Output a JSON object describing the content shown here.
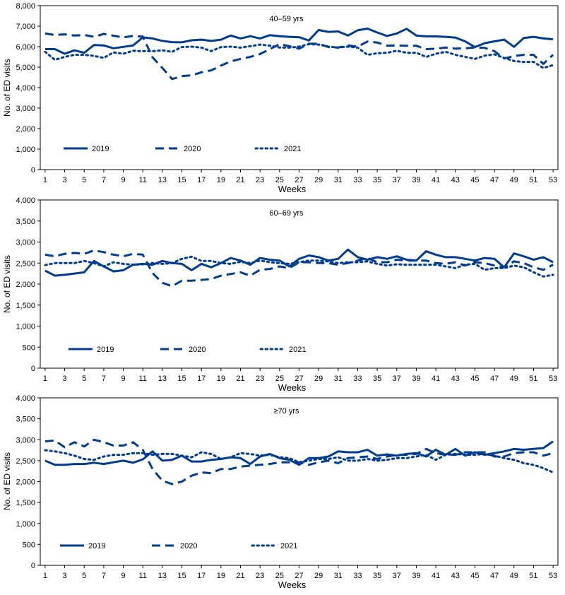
{
  "figure": {
    "xlabel": "Weeks",
    "ylabel": "No. of ED visits",
    "legend_labels": [
      "2019",
      "2020",
      "2021"
    ],
    "series_color": "#003c8f"
  },
  "chart_data": [
    {
      "type": "line",
      "title": "40–59 yrs",
      "xlabel": "Weeks",
      "ylabel": "No. of ED visits",
      "xlim": [
        0.5,
        53.5
      ],
      "xticks": [
        1,
        3,
        5,
        7,
        9,
        11,
        13,
        15,
        17,
        19,
        21,
        23,
        25,
        27,
        29,
        31,
        33,
        35,
        37,
        39,
        41,
        43,
        45,
        47,
        49,
        51,
        53
      ],
      "ylim": [
        0,
        8000
      ],
      "yticks": [
        0,
        1000,
        2000,
        3000,
        4000,
        5000,
        6000,
        7000,
        8000
      ],
      "ytick_labels": [
        "0",
        "1,000",
        "2,000",
        "3,000",
        "4,000",
        "5,000",
        "6,000",
        "7,000",
        "8,000"
      ],
      "legend": "bottom-left",
      "grid": false,
      "series": [
        {
          "name": "2019",
          "style": "solid",
          "x_start": 1,
          "values": [
            5880,
            5880,
            5650,
            5820,
            5700,
            6080,
            6060,
            5920,
            5990,
            6060,
            6450,
            6400,
            6280,
            6220,
            6210,
            6310,
            6340,
            6280,
            6340,
            6540,
            6400,
            6510,
            6400,
            6560,
            6510,
            6480,
            6460,
            6300,
            6810,
            6720,
            6740,
            6540,
            6800,
            6880,
            6690,
            6520,
            6640,
            6870,
            6540,
            6500,
            6500,
            6480,
            6440,
            6260,
            5980,
            6170,
            6260,
            6340,
            5990,
            6420,
            6480,
            6400,
            6360
          ]
        },
        {
          "name": "2020",
          "style": "dashed",
          "x_start": 1,
          "values": [
            6640,
            6570,
            6600,
            6540,
            6570,
            6480,
            6620,
            6530,
            6450,
            6520,
            6490,
            5480,
            4960,
            4420,
            4560,
            4600,
            4750,
            4840,
            5080,
            5280,
            5400,
            5500,
            5640,
            5880,
            6120,
            6020,
            5900,
            6140,
            6140,
            5980,
            5950,
            6060,
            6000,
            6250,
            6200,
            6050,
            6060,
            6040,
            6040,
            5880,
            5900,
            5960,
            5900,
            5920,
            5960,
            5940,
            5780,
            5420,
            5540,
            5600,
            5600,
            5160,
            5600
          ]
        },
        {
          "name": "2021",
          "style": "dotted",
          "x_start": 1,
          "values": [
            5750,
            5360,
            5500,
            5600,
            5600,
            5550,
            5450,
            5720,
            5650,
            5800,
            5780,
            5780,
            5820,
            5750,
            5980,
            6000,
            5950,
            5780,
            5980,
            6000,
            5950,
            6020,
            6100,
            6050,
            5960,
            5950,
            6000,
            6120,
            6100,
            6000,
            5960,
            6000,
            5950,
            5600,
            5680,
            5700,
            5800,
            5700,
            5700,
            5500,
            5650,
            5750,
            5600,
            5500,
            5400,
            5560,
            5620,
            5450,
            5300,
            5250,
            5260,
            4960,
            5100
          ]
        }
      ]
    },
    {
      "type": "line",
      "title": "60–69 yrs",
      "xlabel": "Weeks",
      "ylabel": "No. of ED visits",
      "xlim": [
        0.5,
        53.5
      ],
      "xticks": [
        1,
        3,
        5,
        7,
        9,
        11,
        13,
        15,
        17,
        19,
        21,
        23,
        25,
        27,
        29,
        31,
        33,
        35,
        37,
        39,
        41,
        43,
        45,
        47,
        49,
        51,
        53
      ],
      "ylim": [
        0,
        4000
      ],
      "yticks": [
        0,
        500,
        1000,
        1500,
        2000,
        2500,
        3000,
        3500,
        4000
      ],
      "ytick_labels": [
        "0",
        "500",
        "1,000",
        "1,500",
        "2,000",
        "2,500",
        "3,000",
        "3,500",
        "4,000"
      ],
      "legend": "bottom-left",
      "grid": false,
      "series": [
        {
          "name": "2019",
          "style": "solid",
          "x_start": 1,
          "values": [
            2320,
            2200,
            2220,
            2250,
            2280,
            2550,
            2420,
            2300,
            2330,
            2460,
            2480,
            2460,
            2550,
            2500,
            2480,
            2330,
            2480,
            2400,
            2500,
            2620,
            2560,
            2460,
            2620,
            2580,
            2560,
            2420,
            2600,
            2680,
            2640,
            2560,
            2600,
            2820,
            2640,
            2580,
            2640,
            2600,
            2660,
            2580,
            2560,
            2780,
            2700,
            2640,
            2640,
            2600,
            2560,
            2620,
            2600,
            2400,
            2730,
            2660,
            2580,
            2640,
            2520
          ]
        },
        {
          "name": "2020",
          "style": "dashed",
          "x_start": 1,
          "values": [
            2700,
            2660,
            2720,
            2740,
            2720,
            2800,
            2760,
            2700,
            2660,
            2720,
            2700,
            2260,
            2030,
            1950,
            2080,
            2080,
            2100,
            2120,
            2200,
            2240,
            2280,
            2200,
            2340,
            2360,
            2420,
            2380,
            2520,
            2520,
            2500,
            2500,
            2460,
            2500,
            2560,
            2620,
            2520,
            2520,
            2580,
            2560,
            2560,
            2560,
            2500,
            2480,
            2520,
            2440,
            2520,
            2500,
            2440,
            2400,
            2540,
            2500,
            2400,
            2340,
            2460
          ]
        },
        {
          "name": "2021",
          "style": "dotted",
          "x_start": 1,
          "values": [
            2450,
            2500,
            2500,
            2500,
            2550,
            2500,
            2420,
            2520,
            2480,
            2460,
            2470,
            2500,
            2480,
            2500,
            2600,
            2650,
            2550,
            2550,
            2500,
            2480,
            2530,
            2500,
            2560,
            2520,
            2500,
            2480,
            2520,
            2560,
            2560,
            2540,
            2500,
            2520,
            2520,
            2540,
            2480,
            2440,
            2470,
            2460,
            2460,
            2460,
            2460,
            2420,
            2380,
            2460,
            2480,
            2340,
            2380,
            2380,
            2440,
            2400,
            2280,
            2180,
            2220
          ]
        }
      ]
    },
    {
      "type": "line",
      "title": "≥70 yrs",
      "xlabel": "Weeks",
      "ylabel": "No. of ED visits",
      "xlim": [
        0.5,
        53.5
      ],
      "xticks": [
        1,
        3,
        5,
        7,
        9,
        11,
        13,
        15,
        17,
        19,
        21,
        23,
        25,
        27,
        29,
        31,
        33,
        35,
        37,
        39,
        41,
        43,
        45,
        47,
        49,
        51,
        53
      ],
      "ylim": [
        0,
        4000
      ],
      "yticks": [
        0,
        500,
        1000,
        1500,
        2000,
        2500,
        3000,
        3500,
        4000
      ],
      "ytick_labels": [
        "0",
        "500",
        "1,000",
        "1,500",
        "2,000",
        "2,500",
        "3,000",
        "3,500",
        "4,000"
      ],
      "legend": "bottom-left",
      "grid": false,
      "series": [
        {
          "name": "2019",
          "style": "solid",
          "x_start": 1,
          "values": [
            2500,
            2400,
            2400,
            2420,
            2420,
            2450,
            2420,
            2460,
            2500,
            2450,
            2530,
            2720,
            2500,
            2520,
            2620,
            2480,
            2480,
            2520,
            2540,
            2580,
            2560,
            2420,
            2600,
            2660,
            2560,
            2520,
            2400,
            2560,
            2560,
            2600,
            2720,
            2700,
            2700,
            2760,
            2620,
            2650,
            2620,
            2660,
            2680,
            2600,
            2760,
            2640,
            2780,
            2620,
            2700,
            2640,
            2680,
            2720,
            2780,
            2760,
            2780,
            2800,
            2960
          ]
        },
        {
          "name": "2020",
          "style": "dashed",
          "x_start": 1,
          "values": [
            2960,
            2980,
            2820,
            2940,
            2840,
            3000,
            2940,
            2860,
            2860,
            2940,
            2760,
            2300,
            2020,
            1940,
            2000,
            2140,
            2220,
            2200,
            2300,
            2300,
            2360,
            2380,
            2400,
            2420,
            2460,
            2460,
            2460,
            2400,
            2460,
            2500,
            2440,
            2560,
            2580,
            2600,
            2540,
            2600,
            2640,
            2640,
            2660,
            2780,
            2680,
            2640,
            2640,
            2700,
            2700,
            2700,
            2600,
            2600,
            2680,
            2700,
            2700,
            2620,
            2680
          ]
        },
        {
          "name": "2021",
          "style": "dotted",
          "x_start": 1,
          "values": [
            2750,
            2720,
            2680,
            2620,
            2540,
            2520,
            2600,
            2640,
            2640,
            2680,
            2680,
            2640,
            2660,
            2660,
            2620,
            2580,
            2700,
            2660,
            2540,
            2580,
            2680,
            2660,
            2620,
            2640,
            2580,
            2560,
            2460,
            2500,
            2540,
            2540,
            2580,
            2500,
            2500,
            2540,
            2500,
            2520,
            2560,
            2560,
            2600,
            2640,
            2520,
            2640,
            2660,
            2640,
            2640,
            2660,
            2620,
            2560,
            2520,
            2440,
            2400,
            2320,
            2220
          ]
        }
      ]
    }
  ]
}
